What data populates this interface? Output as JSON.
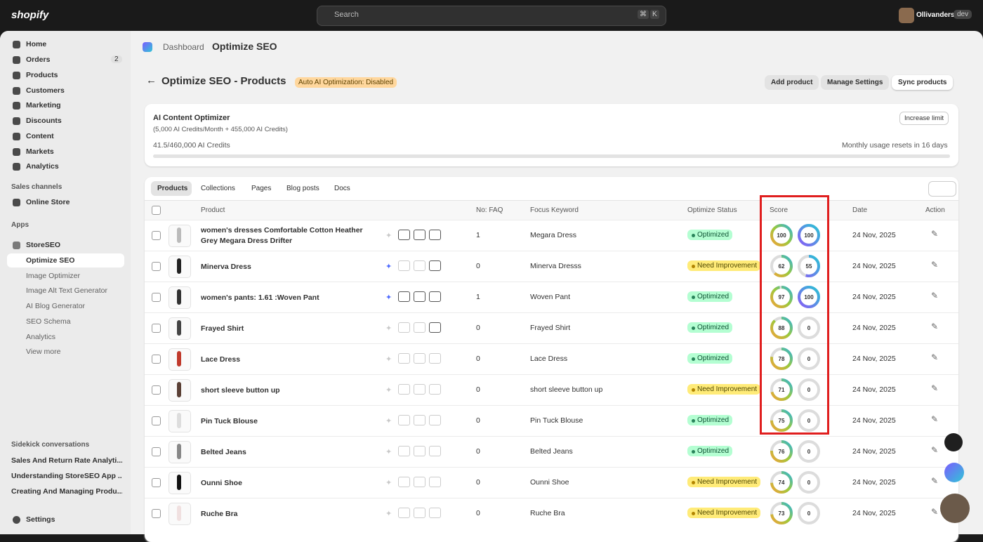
{
  "topbar": {
    "logo": "shopify",
    "search": "Search",
    "shortcut": [
      "⌘",
      "K"
    ],
    "store": "Ollivanders",
    "store_badge": "dev"
  },
  "sidebar": {
    "nav": [
      {
        "label": "Home"
      },
      {
        "label": "Orders",
        "count": 2
      },
      {
        "label": "Products"
      },
      {
        "label": "Customers"
      },
      {
        "label": "Marketing"
      },
      {
        "label": "Discounts"
      },
      {
        "label": "Content"
      },
      {
        "label": "Markets"
      },
      {
        "label": "Analytics"
      }
    ],
    "sales_channels": "Sales channels",
    "online_store": "Online Store",
    "apps": "Apps",
    "app": "StoreSEO",
    "app_items": [
      "Optimize SEO",
      "Image Optimizer",
      "Image Alt Text Generator",
      "AI Blog Generator",
      "SEO Schema",
      "Analytics",
      "View more"
    ],
    "sidekick": "Sidekick conversations",
    "conversations": [
      "Sales And Return Rate Analyti...",
      "Understanding StoreSEO App ...",
      "Creating And Managing Produ..."
    ],
    "settings": "Settings"
  },
  "breadcrumb": [
    "Dashboard",
    "Optimize SEO"
  ],
  "header": {
    "title": "Optimize SEO - Products",
    "badge": "Auto AI Optimization: Disabled",
    "buttons": [
      "Add product",
      "Manage Settings",
      "Sync products"
    ]
  },
  "credits": {
    "title": "AI Content Optimizer",
    "subtitle": "(5,000 AI Credits/Month + 455,000 AI Credits)",
    "button": "Increase limit",
    "usage": "41.5/460,000 AI Credits",
    "reset": "Monthly usage resets in 16 days"
  },
  "tabs": [
    "Products",
    "Collections",
    "Pages",
    "Blog posts",
    "Docs"
  ],
  "table": {
    "columns": [
      "Product",
      "No: FAQ",
      "Focus Keyword",
      "Optimize Status",
      "Score",
      "Date",
      "Action"
    ],
    "rows": [
      {
        "product": "women's dresses Comfortable Cotton Heather Grey Megara Dress Drifter",
        "faq": 1,
        "keyword": "Megara Dress",
        "status": "Optimized",
        "scores": [
          100,
          100
        ],
        "date": "24 Nov, 2025"
      },
      {
        "product": "Minerva Dress",
        "faq": 0,
        "keyword": "Minerva Dresss",
        "status": "Need Improvement",
        "scores": [
          62,
          55
        ],
        "date": "24 Nov, 2025"
      },
      {
        "product": "women's pants: 1.61 :Woven Pant",
        "faq": 1,
        "keyword": "Woven Pant",
        "status": "Optimized",
        "scores": [
          97,
          100
        ],
        "date": "24 Nov, 2025"
      },
      {
        "product": "Frayed Shirt",
        "faq": 0,
        "keyword": "Frayed Shirt",
        "status": "Optimized",
        "scores": [
          88,
          0
        ],
        "date": "24 Nov, 2025"
      },
      {
        "product": "Lace Dress",
        "faq": 0,
        "keyword": "Lace Dress",
        "status": "Optimized",
        "scores": [
          78,
          0
        ],
        "date": "24 Nov, 2025"
      },
      {
        "product": "short sleeve button up",
        "faq": 0,
        "keyword": "short sleeve button up",
        "status": "Need Improvement",
        "scores": [
          71,
          0
        ],
        "date": "24 Nov, 2025"
      },
      {
        "product": "Pin Tuck Blouse",
        "faq": 0,
        "keyword": "Pin Tuck Blouse",
        "status": "Optimized",
        "scores": [
          75,
          0
        ],
        "date": "24 Nov, 2025"
      },
      {
        "product": "Belted Jeans",
        "faq": 0,
        "keyword": "Belted Jeans",
        "status": "Optimized",
        "scores": [
          76,
          0
        ],
        "date": "24 Nov, 2025"
      },
      {
        "product": "Ounni Shoe",
        "faq": 0,
        "keyword": "Ounni Shoe",
        "status": "Need Improvement",
        "scores": [
          74,
          0
        ],
        "date": "24 Nov, 2025"
      },
      {
        "product": "Ruche Bra",
        "faq": 0,
        "keyword": "Ruche Bra",
        "status": "Need Improvement",
        "scores": [
          73,
          0
        ],
        "date": "24 Nov, 2025"
      }
    ]
  }
}
